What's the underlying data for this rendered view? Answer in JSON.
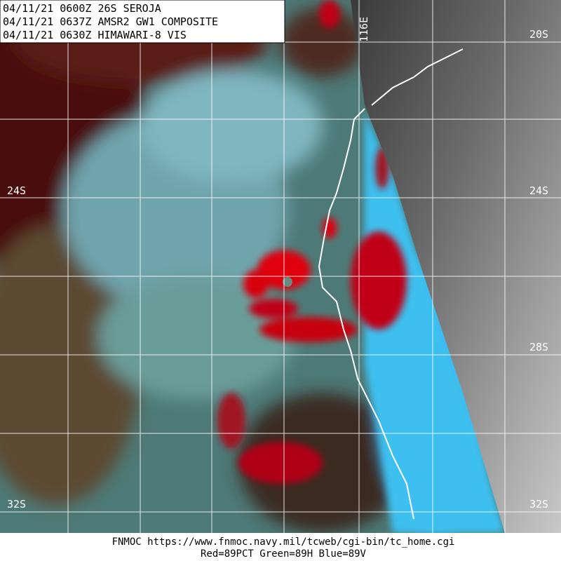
{
  "header": {
    "lines": [
      "04/11/21 0600Z  26S SEROJA",
      "04/11/21 0637Z  AMSR2 GW1 COMPOSITE",
      "04/11/21 0630Z  HIMAWARI-8 VIS"
    ]
  },
  "latitude_labels": [
    "20S",
    "24S",
    "28S",
    "32S"
  ],
  "longitude_labels": [
    "116E"
  ],
  "footer": {
    "source": "FNMOC https://www.fnmoc.navy.mil/tcweb/cgi-bin/tc_home.cgi",
    "channels": "Red=89PCT  Green=89H  Blue=89V"
  }
}
